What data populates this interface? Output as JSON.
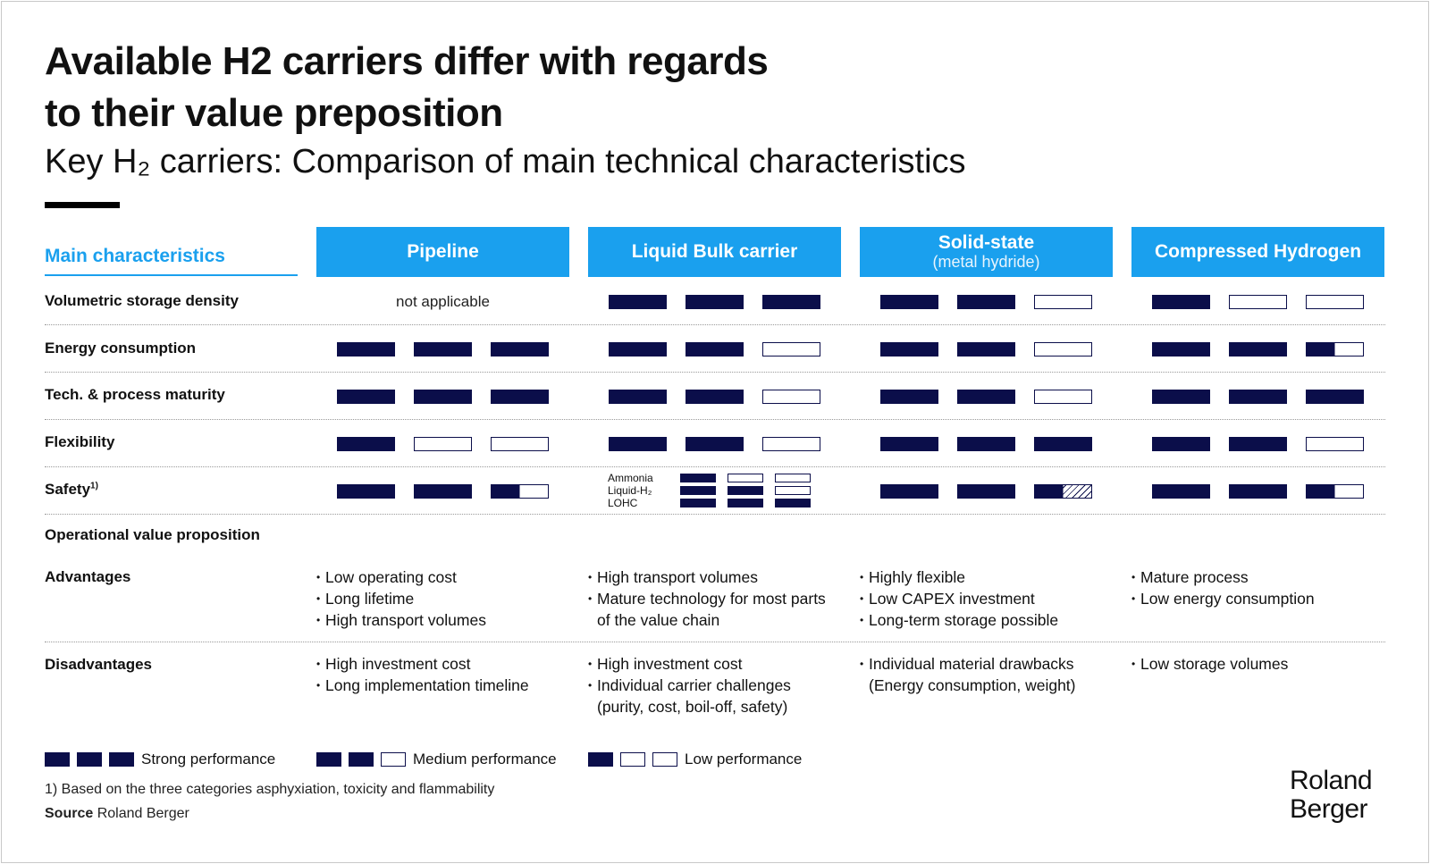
{
  "title_line1": "Available H2 carriers differ with regards",
  "title_line2": "to their value preposition",
  "subtitle": "Key H₂ carriers: Comparison of main technical characteristics",
  "main_characteristics_label": "Main characteristics",
  "columns": [
    {
      "name": "Pipeline",
      "sub": ""
    },
    {
      "name": "Liquid Bulk carrier",
      "sub": ""
    },
    {
      "name": "Solid-state",
      "sub": "(metal hydride)"
    },
    {
      "name": "Compressed Hydrogen",
      "sub": ""
    }
  ],
  "rows": [
    {
      "label": "Volumetric storage density",
      "ratings": [
        "not applicable",
        [
          1,
          1,
          1
        ],
        [
          1,
          1,
          0
        ],
        [
          1,
          0,
          0
        ]
      ]
    },
    {
      "label": "Energy consumption",
      "ratings": [
        [
          1,
          1,
          1
        ],
        [
          1,
          1,
          0
        ],
        [
          1,
          1,
          0
        ],
        [
          1,
          1,
          0.5
        ]
      ]
    },
    {
      "label": "Tech. & process maturity",
      "ratings": [
        [
          1,
          1,
          1
        ],
        [
          1,
          1,
          0
        ],
        [
          1,
          1,
          0
        ],
        [
          1,
          1,
          1
        ]
      ]
    },
    {
      "label": "Flexibility",
      "ratings": [
        [
          1,
          0,
          0
        ],
        [
          1,
          1,
          0
        ],
        [
          1,
          1,
          1
        ],
        [
          1,
          1,
          0
        ]
      ]
    },
    {
      "label": "Safety",
      "label_sup": "1)",
      "ratings": [
        [
          1,
          1,
          0.5
        ],
        "sub",
        [
          1,
          1,
          "hatch"
        ],
        [
          1,
          1,
          0.5
        ]
      ]
    }
  ],
  "safety_sub": [
    {
      "label": "Ammonia",
      "ratings": [
        1,
        0,
        0
      ]
    },
    {
      "label": "Liquid-H₂",
      "ratings": [
        1,
        1,
        0
      ]
    },
    {
      "label": "LOHC",
      "ratings": [
        1,
        1,
        1
      ]
    }
  ],
  "operational_label": "Operational value proposition",
  "advantages_label": "Advantages",
  "disadvantages_label": "Disadvantages",
  "advantages": [
    [
      "Low operating cost",
      "Long lifetime",
      "High transport volumes"
    ],
    [
      "High transport volumes",
      "Mature technology for most parts of the value chain"
    ],
    [
      "Highly flexible",
      "Low CAPEX investment",
      "Long-term storage possible"
    ],
    [
      "Mature process",
      "Low energy consumption"
    ]
  ],
  "disadvantages": [
    [
      "High investment cost",
      "Long implementation timeline"
    ],
    [
      "High investment cost",
      "Individual carrier challenges (purity, cost, boil-off, safety)"
    ],
    [
      "Individual material drawbacks (Energy consumption, weight)"
    ],
    [
      "Low storage volumes"
    ]
  ],
  "legend": {
    "strong": "Strong performance",
    "medium": "Medium performance",
    "low": "Low performance"
  },
  "footnote": "1) Based on the three categories asphyxiation, toxicity and flammability",
  "source_label": "Source",
  "source_value": "Roland Berger",
  "logo_line1": "Roland",
  "logo_line2": "Berger",
  "colors": {
    "accent": "#1aa0ee",
    "navy": "#0b0e4a"
  }
}
